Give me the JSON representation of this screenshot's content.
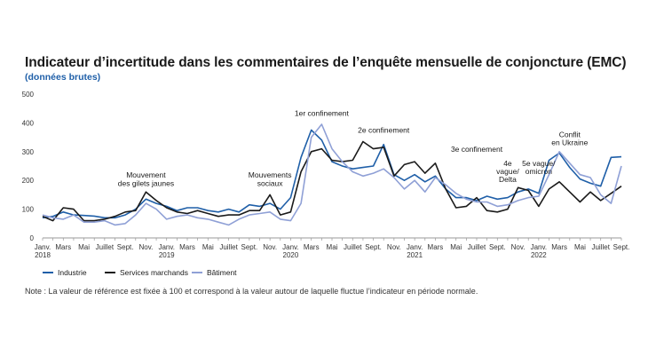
{
  "header": {
    "title": "Indicateur d’incertitude dans les commentaires de l’enquête mensuelle de conjoncture (EMC)",
    "subtitle": "(données brutes)"
  },
  "note": "Note : La valeur de référence est fixée à 100 et correspond à la valeur autour de laquelle fluctue l’indicateur en période normale.",
  "colors": {
    "industrie": "#1f5fa8",
    "services": "#1a1a1a",
    "batiment": "#8fa0d6",
    "axis": "#999999"
  },
  "chart_data": {
    "type": "line",
    "title": "Indicateur d’incertitude dans les commentaires de l’enquête mensuelle de conjoncture (EMC)",
    "ylim": [
      0,
      500
    ],
    "yticks": [
      0,
      100,
      200,
      300,
      400,
      500
    ],
    "x_tick_labels": [
      {
        "i": 0,
        "l1": "Janv.",
        "l2": "2018"
      },
      {
        "i": 2,
        "l1": "Mars",
        "l2": ""
      },
      {
        "i": 4,
        "l1": "Mai",
        "l2": ""
      },
      {
        "i": 6,
        "l1": "Juillet",
        "l2": ""
      },
      {
        "i": 8,
        "l1": "Sept.",
        "l2": ""
      },
      {
        "i": 10,
        "l1": "Nov.",
        "l2": ""
      },
      {
        "i": 12,
        "l1": "Janv.",
        "l2": "2019"
      },
      {
        "i": 14,
        "l1": "Mars",
        "l2": ""
      },
      {
        "i": 16,
        "l1": "Mai",
        "l2": ""
      },
      {
        "i": 18,
        "l1": "Juillet",
        "l2": ""
      },
      {
        "i": 20,
        "l1": "Sept.",
        "l2": ""
      },
      {
        "i": 22,
        "l1": "Nov.",
        "l2": ""
      },
      {
        "i": 24,
        "l1": "Janv.",
        "l2": "2020"
      },
      {
        "i": 26,
        "l1": "Mars",
        "l2": ""
      },
      {
        "i": 28,
        "l1": "Mai",
        "l2": ""
      },
      {
        "i": 30,
        "l1": "Juillet",
        "l2": ""
      },
      {
        "i": 32,
        "l1": "Sept.",
        "l2": ""
      },
      {
        "i": 34,
        "l1": "Nov.",
        "l2": ""
      },
      {
        "i": 36,
        "l1": "Janv.",
        "l2": "2021"
      },
      {
        "i": 38,
        "l1": "Mars",
        "l2": ""
      },
      {
        "i": 40,
        "l1": "Mai",
        "l2": ""
      },
      {
        "i": 42,
        "l1": "Juillet",
        "l2": ""
      },
      {
        "i": 44,
        "l1": "Sept.",
        "l2": ""
      },
      {
        "i": 46,
        "l1": "Nov.",
        "l2": ""
      },
      {
        "i": 48,
        "l1": "Janv.",
        "l2": "2022"
      },
      {
        "i": 50,
        "l1": "Mars",
        "l2": ""
      },
      {
        "i": 52,
        "l1": "Mai",
        "l2": ""
      },
      {
        "i": 54,
        "l1": "Juillet",
        "l2": ""
      },
      {
        "i": 56,
        "l1": "Sept.",
        "l2": ""
      }
    ],
    "series": [
      {
        "name": "Industrie",
        "key": "industrie",
        "values": [
          70,
          75,
          90,
          80,
          78,
          76,
          70,
          70,
          80,
          100,
          135,
          120,
          110,
          95,
          105,
          105,
          95,
          90,
          100,
          90,
          115,
          110,
          120,
          100,
          140,
          280,
          375,
          340,
          265,
          250,
          240,
          245,
          250,
          325,
          220,
          200,
          220,
          195,
          215,
          170,
          140,
          140,
          130,
          145,
          135,
          140,
          160,
          170,
          155,
          270,
          295,
          245,
          205,
          190,
          180,
          280,
          282
        ]
      },
      {
        "name": "Services marchands",
        "key": "services",
        "values": [
          75,
          60,
          105,
          100,
          60,
          60,
          65,
          75,
          90,
          95,
          160,
          130,
          105,
          90,
          85,
          95,
          85,
          75,
          80,
          80,
          95,
          95,
          150,
          80,
          90,
          230,
          300,
          310,
          270,
          265,
          270,
          335,
          310,
          315,
          215,
          255,
          265,
          225,
          260,
          170,
          105,
          110,
          140,
          95,
          90,
          100,
          175,
          165,
          110,
          170,
          195,
          160,
          125,
          160,
          130,
          155,
          180
        ]
      },
      {
        "name": "Bâtiment",
        "key": "batiment",
        "values": [
          80,
          70,
          65,
          80,
          55,
          55,
          60,
          45,
          50,
          80,
          120,
          100,
          65,
          75,
          80,
          70,
          65,
          55,
          45,
          65,
          80,
          85,
          90,
          65,
          60,
          120,
          350,
          395,
          310,
          265,
          230,
          215,
          225,
          240,
          210,
          170,
          200,
          160,
          210,
          185,
          155,
          135,
          125,
          125,
          110,
          115,
          130,
          140,
          145,
          220,
          300,
          260,
          220,
          210,
          150,
          120,
          250
        ]
      }
    ],
    "legend": [
      "Industrie",
      "Services marchands",
      "Bâtiment"
    ],
    "annotations": [
      {
        "text": "Mouvement",
        "at_index": 10,
        "value": 210
      },
      {
        "text": "des gilets jaunes",
        "at_index": 10,
        "value": 180
      },
      {
        "text": "Mouvements",
        "at_index": 22,
        "value": 210
      },
      {
        "text": "sociaux",
        "at_index": 22,
        "value": 180
      },
      {
        "text": "1er confinement",
        "at_index": 27,
        "value": 425
      },
      {
        "text": "2e confinement",
        "at_index": 33,
        "value": 365
      },
      {
        "text": "3e confinement",
        "at_index": 42,
        "value": 300
      },
      {
        "text": "4e",
        "at_index": 45,
        "value": 250
      },
      {
        "text": "vague/",
        "at_index": 45,
        "value": 222
      },
      {
        "text": "Delta",
        "at_index": 45,
        "value": 194
      },
      {
        "text": "5e vague/",
        "at_index": 48,
        "value": 250
      },
      {
        "text": "omicron",
        "at_index": 48,
        "value": 222
      },
      {
        "text": "Conflit",
        "at_index": 51,
        "value": 350
      },
      {
        "text": "en Ukraine",
        "at_index": 51,
        "value": 322
      }
    ]
  }
}
